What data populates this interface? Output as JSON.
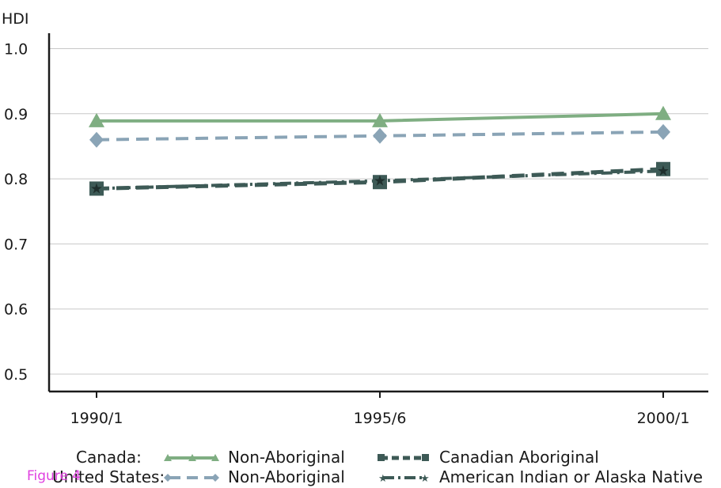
{
  "chart_data": {
    "type": "line",
    "ylabel": "HDI",
    "xlabel": "",
    "ylim": [
      0.48,
      1.03
    ],
    "yticks": [
      "1.0",
      "0.9",
      "0.8",
      "0.7",
      "0.6",
      "0.5"
    ],
    "ytick_values": [
      1.0,
      0.9,
      0.8,
      0.7,
      0.6,
      0.5
    ],
    "categories": [
      "1990/1",
      "1995/6",
      "2000/1"
    ],
    "grid": true,
    "legend_position": "bottom",
    "series": [
      {
        "name": "Non-Aboriginal",
        "group": "Canada:",
        "values": [
          0.889,
          0.889,
          0.9
        ],
        "color": "#7fae82",
        "marker": "triangle",
        "dash": "solid"
      },
      {
        "name": "Non-Aboriginal",
        "group": "United States:",
        "values": [
          0.86,
          0.866,
          0.872
        ],
        "color": "#8aa4b6",
        "marker": "diamond",
        "dash": "dashed"
      },
      {
        "name": "Canadian Aboriginal",
        "group": "Canada:",
        "values": [
          0.785,
          0.795,
          0.815
        ],
        "color": "#3d5a56",
        "marker": "square",
        "dash": "dashed"
      },
      {
        "name": "American Indian or Alaska Native",
        "group": "United States:",
        "values": [
          0.785,
          0.797,
          0.812
        ],
        "color": "#3d5a56",
        "marker": "star",
        "dash": "dashdot"
      }
    ]
  },
  "legend": {
    "row1_label": "Canada:",
    "row2_label": "United States:",
    "row1_item1": "Non-Aboriginal",
    "row1_item2": "Canadian Aboriginal",
    "row2_item1": "Non-Aboriginal",
    "row2_item2": "American Indian or Alaska Native"
  },
  "figure_label": "Figure 4"
}
